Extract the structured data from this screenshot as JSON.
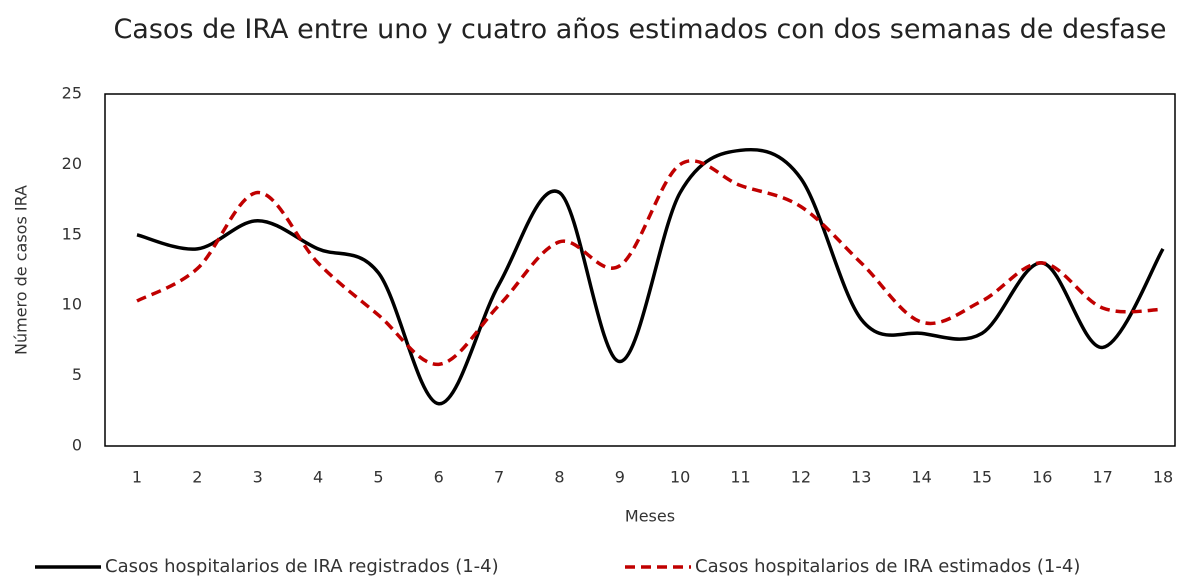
{
  "chart_data": {
    "type": "line",
    "title": "Casos de IRA entre uno y cuatro años estimados con dos semanas de desfase",
    "x_label": "Meses",
    "y_label": "Número de casos IRA",
    "categories": [
      "1",
      "2",
      "3",
      "4",
      "5",
      "6",
      "7",
      "8",
      "9",
      "10",
      "11",
      "12",
      "13",
      "14",
      "15",
      "16",
      "17",
      "18"
    ],
    "series": [
      {
        "name": "Casos hospitalarios de IRA registrados (1-4)",
        "color": "#000000",
        "dash": false,
        "values": [
          15,
          14,
          16,
          14,
          12.3,
          3,
          11.5,
          18,
          6,
          18,
          21,
          19,
          9,
          8,
          8,
          13,
          7,
          14
        ]
      },
      {
        "name": "Casos hospitalarios de IRA estimados (1-4)",
        "color": "#c00000",
        "dash": true,
        "values": [
          10.3,
          12.6,
          18,
          13,
          9.3,
          5.8,
          10,
          14.5,
          12.8,
          20,
          18.5,
          17,
          13,
          8.8,
          10.3,
          13,
          9.8,
          9.7
        ]
      }
    ],
    "ylim": [
      0,
      25
    ],
    "yticks": [
      0,
      5,
      10,
      15,
      20,
      25
    ],
    "grid": false,
    "legend": "bottom"
  }
}
